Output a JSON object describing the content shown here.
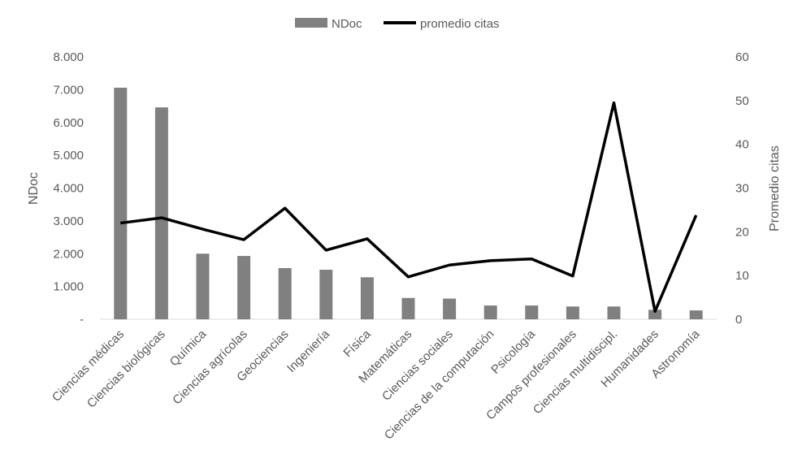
{
  "chart_data": {
    "type": "bar",
    "categories": [
      "Ciencias médicas",
      "Ciencias biológicas",
      "Química",
      "Ciencias agrícolas",
      "Geociencias",
      "Ingeniería",
      "Física",
      "Matemáticas",
      "Ciencias sociales",
      "Ciencias de la computación",
      "Psicología",
      "Campos profesionales",
      "Ciencias multidiscipl.",
      "Humanidades",
      "Astronomía"
    ],
    "series": [
      {
        "name": "NDoc",
        "type": "bar",
        "axis": "left",
        "color": "#808080",
        "values": [
          7060,
          6460,
          2000,
          1930,
          1560,
          1510,
          1280,
          650,
          630,
          420,
          420,
          390,
          390,
          290,
          270
        ]
      },
      {
        "name": "promedio citas",
        "type": "line",
        "axis": "right",
        "color": "#000000",
        "values": [
          22,
          23.2,
          20.6,
          18.2,
          25.4,
          15.8,
          18.4,
          9.7,
          12.4,
          13.4,
          13.8,
          9.9,
          49.5,
          1.8,
          23.8
        ]
      }
    ],
    "y_left": {
      "label": "NDoc",
      "min": 0,
      "max": 8000,
      "ticks": [
        "-",
        "1.000",
        "2.000",
        "3.000",
        "4.000",
        "5.000",
        "6.000",
        "7.000",
        "8.000"
      ]
    },
    "y_right": {
      "label": "Promedio citas",
      "min": 0,
      "max": 60,
      "ticks": [
        "0",
        "10",
        "20",
        "30",
        "40",
        "50",
        "60"
      ]
    },
    "legend": {
      "position": "top",
      "entries": [
        "NDoc",
        "promedio citas"
      ]
    },
    "grid": false
  }
}
